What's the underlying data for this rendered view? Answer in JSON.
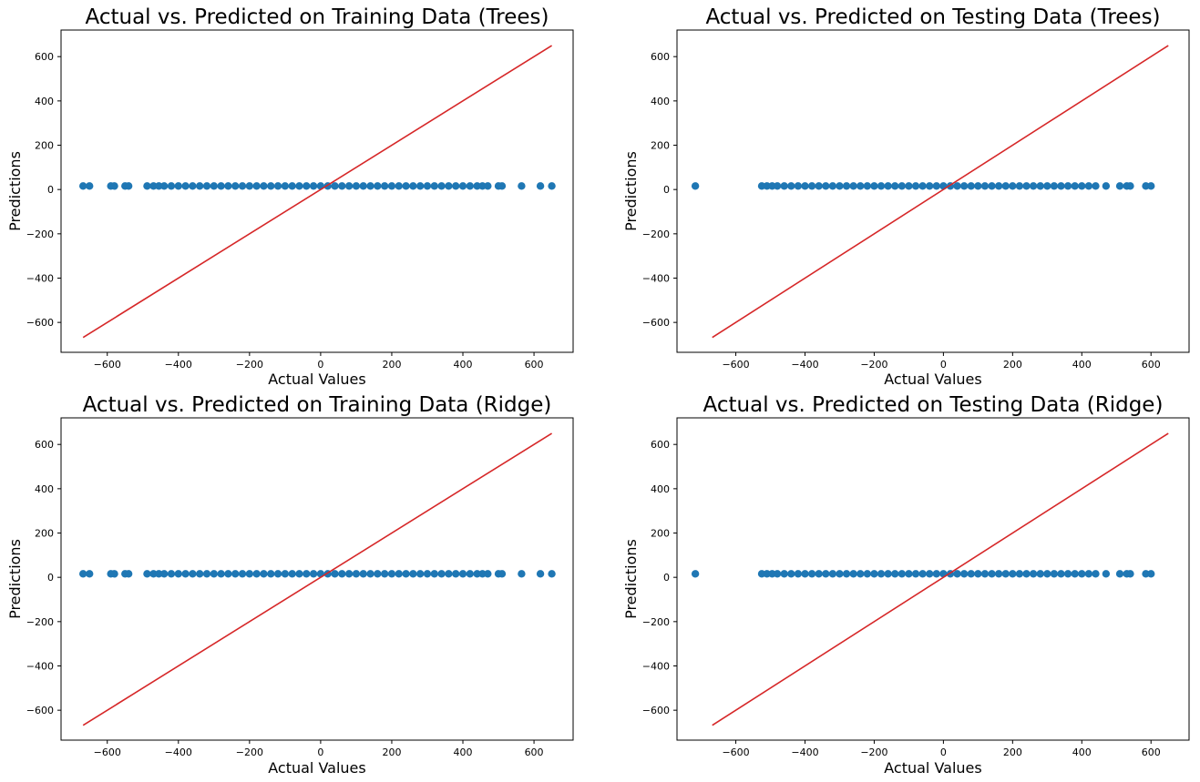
{
  "figure": {
    "background": "#ffffff"
  },
  "style": {
    "point_color": "#1f77b4",
    "line_color": "#d62728"
  },
  "chart_data": [
    {
      "type": "scatter",
      "title": "Actual vs. Predicted on Training Data (Trees)",
      "xlabel": "Actual Values",
      "ylabel": "Predictions",
      "xlim": [
        -730,
        710
      ],
      "ylim": [
        -735,
        720
      ],
      "xticks": [
        -600,
        -400,
        -200,
        0,
        200,
        400,
        600
      ],
      "yticks": [
        -600,
        -400,
        -200,
        0,
        200,
        400,
        600
      ],
      "xtick_labels": [
        "−600",
        "−400",
        "−200",
        "0",
        "200",
        "400",
        "600"
      ],
      "ytick_labels": [
        "−600",
        "−400",
        "−200",
        "0",
        "200",
        "400",
        "600"
      ],
      "grid": false,
      "series": [
        {
          "kind": "scatter",
          "y_constant": 16,
          "x": [
            -668,
            -650,
            -590,
            -580,
            -550,
            -540,
            -488,
            -470,
            -455,
            -440,
            -420,
            -400,
            -380,
            -360,
            -340,
            -320,
            -300,
            -280,
            -260,
            -240,
            -220,
            -200,
            -180,
            -160,
            -140,
            -120,
            -100,
            -80,
            -60,
            -40,
            -20,
            0,
            20,
            40,
            60,
            80,
            100,
            120,
            140,
            160,
            180,
            200,
            220,
            240,
            260,
            280,
            300,
            320,
            340,
            360,
            380,
            400,
            420,
            440,
            455,
            470,
            500,
            510,
            565,
            618,
            650
          ]
        },
        {
          "kind": "line",
          "x": [
            -668,
            650
          ],
          "y": [
            -668,
            650
          ]
        }
      ]
    },
    {
      "type": "scatter",
      "title": "Actual vs. Predicted on Testing Data (Trees)",
      "xlabel": "Actual Values",
      "ylabel": "Predictions",
      "xlim": [
        -770,
        710
      ],
      "ylim": [
        -735,
        720
      ],
      "xticks": [
        -600,
        -400,
        -200,
        0,
        200,
        400,
        600
      ],
      "yticks": [
        -600,
        -400,
        -200,
        0,
        200,
        400,
        600
      ],
      "xtick_labels": [
        "−600",
        "−400",
        "−200",
        "0",
        "200",
        "400",
        "600"
      ],
      "ytick_labels": [
        "−600",
        "−400",
        "−200",
        "0",
        "200",
        "400",
        "600"
      ],
      "grid": false,
      "series": [
        {
          "kind": "scatter",
          "y_constant": 16,
          "x": [
            -717,
            -525,
            -510,
            -495,
            -480,
            -460,
            -440,
            -420,
            -400,
            -380,
            -360,
            -340,
            -320,
            -300,
            -280,
            -260,
            -240,
            -220,
            -200,
            -180,
            -160,
            -140,
            -120,
            -100,
            -80,
            -60,
            -40,
            -20,
            0,
            20,
            40,
            60,
            80,
            100,
            120,
            140,
            160,
            180,
            200,
            220,
            240,
            260,
            280,
            300,
            320,
            340,
            360,
            380,
            400,
            420,
            440,
            470,
            510,
            530,
            540,
            585,
            600
          ]
        },
        {
          "kind": "line",
          "x": [
            -668,
            650
          ],
          "y": [
            -668,
            650
          ]
        }
      ]
    },
    {
      "type": "scatter",
      "title": "Actual vs. Predicted on Training Data (Ridge)",
      "xlabel": "Actual Values",
      "ylabel": "Predictions",
      "xlim": [
        -730,
        710
      ],
      "ylim": [
        -735,
        720
      ],
      "xticks": [
        -600,
        -400,
        -200,
        0,
        200,
        400,
        600
      ],
      "yticks": [
        -600,
        -400,
        -200,
        0,
        200,
        400,
        600
      ],
      "xtick_labels": [
        "−600",
        "−400",
        "−200",
        "0",
        "200",
        "400",
        "600"
      ],
      "ytick_labels": [
        "−600",
        "−400",
        "−200",
        "0",
        "200",
        "400",
        "600"
      ],
      "grid": false,
      "series": [
        {
          "kind": "scatter",
          "y_constant": 16,
          "x": [
            -668,
            -650,
            -590,
            -580,
            -550,
            -540,
            -488,
            -470,
            -455,
            -440,
            -420,
            -400,
            -380,
            -360,
            -340,
            -320,
            -300,
            -280,
            -260,
            -240,
            -220,
            -200,
            -180,
            -160,
            -140,
            -120,
            -100,
            -80,
            -60,
            -40,
            -20,
            0,
            20,
            40,
            60,
            80,
            100,
            120,
            140,
            160,
            180,
            200,
            220,
            240,
            260,
            280,
            300,
            320,
            340,
            360,
            380,
            400,
            420,
            440,
            455,
            470,
            500,
            510,
            565,
            618,
            650
          ]
        },
        {
          "kind": "line",
          "x": [
            -668,
            650
          ],
          "y": [
            -668,
            650
          ]
        }
      ]
    },
    {
      "type": "scatter",
      "title": "Actual vs. Predicted on Testing Data (Ridge)",
      "xlabel": "Actual Values",
      "ylabel": "Predictions",
      "xlim": [
        -770,
        710
      ],
      "ylim": [
        -735,
        720
      ],
      "xticks": [
        -600,
        -400,
        -200,
        0,
        200,
        400,
        600
      ],
      "yticks": [
        -600,
        -400,
        -200,
        0,
        200,
        400,
        600
      ],
      "xtick_labels": [
        "−600",
        "−400",
        "−200",
        "0",
        "200",
        "400",
        "600"
      ],
      "ytick_labels": [
        "−600",
        "−400",
        "−200",
        "0",
        "200",
        "400",
        "600"
      ],
      "grid": false,
      "series": [
        {
          "kind": "scatter",
          "y_constant": 16,
          "x": [
            -717,
            -525,
            -510,
            -495,
            -480,
            -460,
            -440,
            -420,
            -400,
            -380,
            -360,
            -340,
            -320,
            -300,
            -280,
            -260,
            -240,
            -220,
            -200,
            -180,
            -160,
            -140,
            -120,
            -100,
            -80,
            -60,
            -40,
            -20,
            0,
            20,
            40,
            60,
            80,
            100,
            120,
            140,
            160,
            180,
            200,
            220,
            240,
            260,
            280,
            300,
            320,
            340,
            360,
            380,
            400,
            420,
            440,
            470,
            510,
            530,
            540,
            585,
            600
          ]
        },
        {
          "kind": "line",
          "x": [
            -668,
            650
          ],
          "y": [
            -668,
            650
          ]
        }
      ]
    }
  ]
}
